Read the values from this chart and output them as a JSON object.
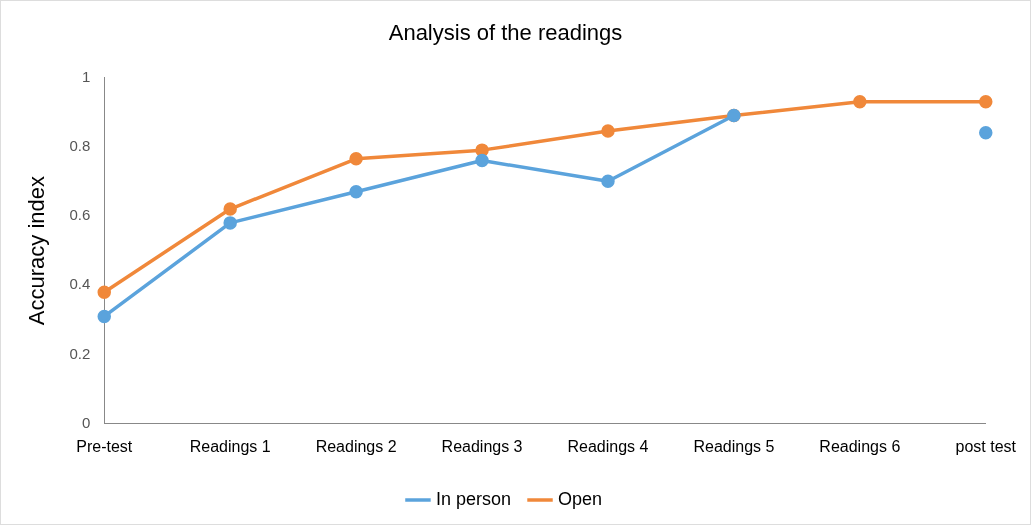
{
  "chart_data": {
    "type": "line",
    "title": "Analysis of the readings",
    "ylabel": "Accuracy index",
    "categories": [
      "Pre-test",
      "Readings 1",
      "Readings 2",
      "Readings 3",
      "Readings 4",
      "Readings 5",
      "Readings 6",
      "post test"
    ],
    "series": [
      {
        "name": "In person",
        "color": "#5ba3dc",
        "values": [
          0.31,
          0.58,
          0.67,
          0.76,
          0.7,
          0.89,
          null,
          0.84
        ]
      },
      {
        "name": "Open",
        "color": "#f0883a",
        "values": [
          0.38,
          0.62,
          0.765,
          0.79,
          0.845,
          0.89,
          0.93,
          0.93
        ]
      }
    ],
    "ylim": [
      0,
      1
    ],
    "yticks": [
      0,
      0.2,
      0.4,
      0.6,
      0.8,
      1
    ],
    "grid": false,
    "legend": "bottom",
    "marker": "circle",
    "line_style": "solid"
  }
}
